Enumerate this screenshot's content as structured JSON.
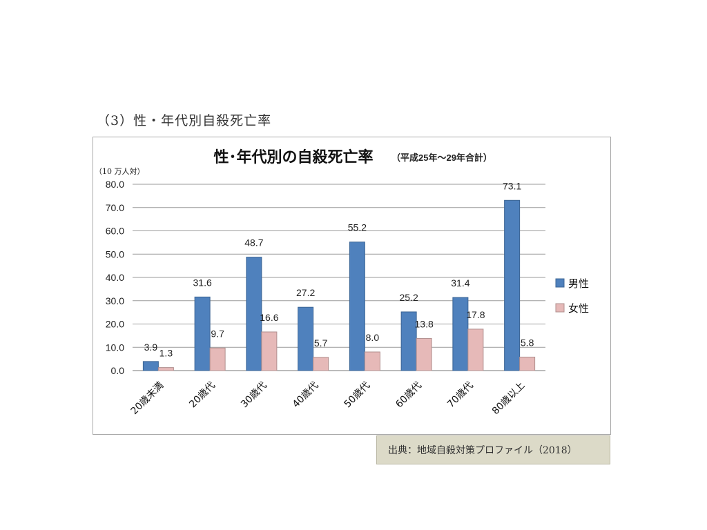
{
  "section_heading": "（3）性・年代別自殺死亡率",
  "source_text": "出典：地域自殺対策プロファイル（2018）",
  "chart_data": {
    "type": "bar",
    "title": "性･年代別の自殺死亡率",
    "subtitle": "（平成25年～29年合計）",
    "ylabel": "（10 万人対）",
    "xlabel": "",
    "ylim": [
      0,
      80
    ],
    "yticks": [
      "0.0",
      "10.0",
      "20.0",
      "30.0",
      "40.0",
      "50.0",
      "60.0",
      "70.0",
      "80.0"
    ],
    "grid": true,
    "legend_position": "right",
    "categories": [
      "20歳未満",
      "20歳代",
      "30歳代",
      "40歳代",
      "50歳代",
      "60歳代",
      "70歳代",
      "80歳以上"
    ],
    "series": [
      {
        "name": "男性",
        "color": "#4f81bd",
        "values": [
          3.9,
          31.6,
          48.7,
          27.2,
          55.2,
          25.2,
          31.4,
          73.1
        ],
        "labels": [
          "3.9",
          "31.6",
          "48.7",
          "27.2",
          "55.2",
          "25.2",
          "31.4",
          "73.1"
        ]
      },
      {
        "name": "女性",
        "color": "#e6b9b8",
        "values": [
          1.3,
          9.7,
          16.6,
          5.7,
          8.0,
          13.8,
          17.8,
          5.8
        ],
        "labels": [
          "1.3",
          "9.7",
          "16.6",
          "5.7",
          "8.0",
          "13.8",
          "17.8",
          "5.8"
        ]
      }
    ]
  }
}
